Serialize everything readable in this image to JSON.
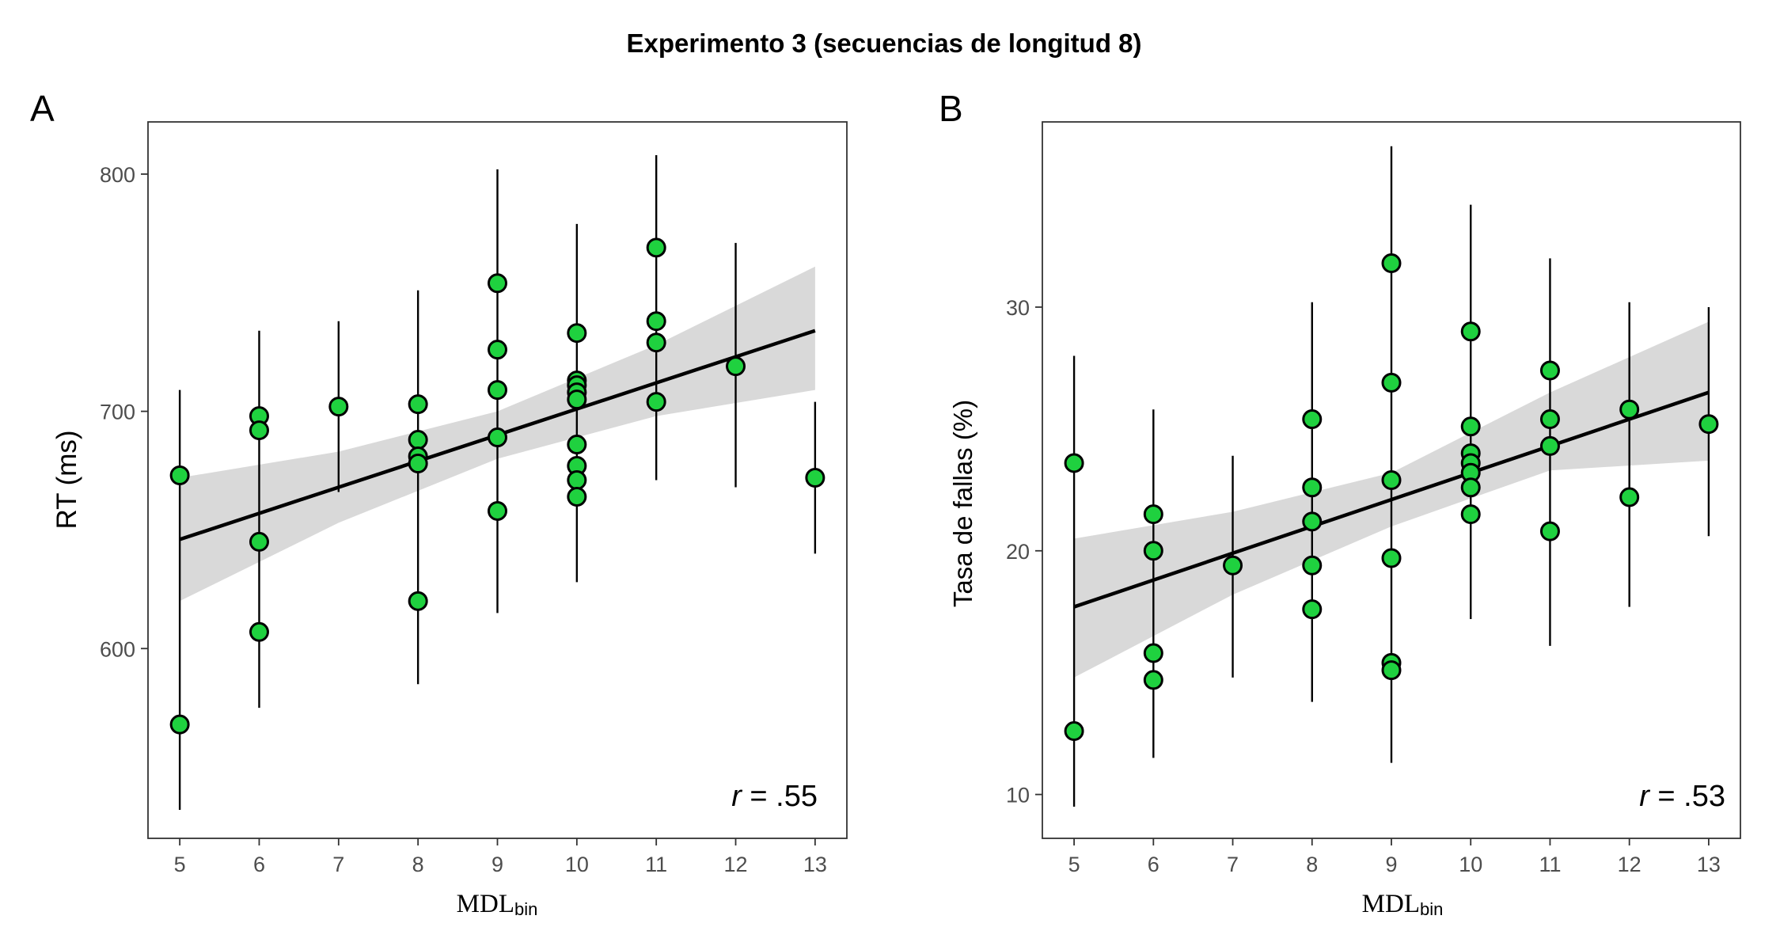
{
  "figure_title": "Experimento 3 (secuencias de longitud 8)",
  "colors": {
    "point_fill": "#1fd13f",
    "point_stroke": "#000000",
    "ribbon": "#d9d9d9",
    "line": "#000000",
    "frame": "#333333"
  },
  "chart_data": [
    {
      "type": "scatter",
      "panel_label": "A",
      "ylabel": "RT (ms)",
      "xlabel_main": "MDL",
      "xlabel_sub": "bin",
      "annotation_r": "r",
      "annotation_value": " = .55",
      "xlim": [
        4.6,
        13.4
      ],
      "ylim": [
        520,
        822
      ],
      "x_ticks": [
        5,
        6,
        7,
        8,
        9,
        10,
        11,
        12,
        13
      ],
      "y_ticks": [
        600,
        700,
        800
      ],
      "points": [
        {
          "x": 5,
          "y": 673
        },
        {
          "x": 5,
          "y": 568
        },
        {
          "x": 6,
          "y": 698
        },
        {
          "x": 6,
          "y": 692
        },
        {
          "x": 6,
          "y": 645
        },
        {
          "x": 6,
          "y": 607
        },
        {
          "x": 7,
          "y": 702
        },
        {
          "x": 8,
          "y": 703
        },
        {
          "x": 8,
          "y": 688
        },
        {
          "x": 8,
          "y": 681
        },
        {
          "x": 8,
          "y": 678
        },
        {
          "x": 8,
          "y": 620
        },
        {
          "x": 9,
          "y": 754
        },
        {
          "x": 9,
          "y": 726
        },
        {
          "x": 9,
          "y": 709
        },
        {
          "x": 9,
          "y": 689
        },
        {
          "x": 9,
          "y": 658
        },
        {
          "x": 10,
          "y": 733
        },
        {
          "x": 10,
          "y": 713
        },
        {
          "x": 10,
          "y": 711
        },
        {
          "x": 10,
          "y": 708
        },
        {
          "x": 10,
          "y": 705
        },
        {
          "x": 10,
          "y": 686
        },
        {
          "x": 10,
          "y": 677
        },
        {
          "x": 10,
          "y": 671
        },
        {
          "x": 10,
          "y": 664
        },
        {
          "x": 11,
          "y": 769
        },
        {
          "x": 11,
          "y": 738
        },
        {
          "x": 11,
          "y": 729
        },
        {
          "x": 11,
          "y": 704
        },
        {
          "x": 12,
          "y": 719
        },
        {
          "x": 13,
          "y": 672
        }
      ],
      "error_bars": [
        {
          "x": 5,
          "low": 532,
          "high": 709
        },
        {
          "x": 6,
          "low": 575,
          "high": 734
        },
        {
          "x": 7,
          "low": 666,
          "high": 738
        },
        {
          "x": 8,
          "low": 585,
          "high": 751
        },
        {
          "x": 9,
          "low": 615,
          "high": 802
        },
        {
          "x": 10,
          "low": 628,
          "high": 779
        },
        {
          "x": 11,
          "low": 671,
          "high": 808
        },
        {
          "x": 12,
          "low": 668,
          "high": 771
        },
        {
          "x": 13,
          "low": 640,
          "high": 704
        }
      ],
      "regression": {
        "x": [
          5,
          13
        ],
        "y": [
          646,
          734
        ]
      },
      "confidence_band": [
        {
          "x": 5,
          "low": 620,
          "high": 672
        },
        {
          "x": 7,
          "low": 653,
          "high": 683
        },
        {
          "x": 9,
          "low": 680,
          "high": 700
        },
        {
          "x": 11,
          "low": 698,
          "high": 728
        },
        {
          "x": 13,
          "low": 709,
          "high": 761
        }
      ],
      "grid": false
    },
    {
      "type": "scatter",
      "panel_label": "B",
      "ylabel": "Tasa de fallas (%)",
      "xlabel_main": "MDL",
      "xlabel_sub": "bin",
      "annotation_r": "r",
      "annotation_value": " = .53",
      "xlim": [
        4.6,
        13.4
      ],
      "ylim": [
        8.2,
        37.6
      ],
      "x_ticks": [
        5,
        6,
        7,
        8,
        9,
        10,
        11,
        12,
        13
      ],
      "y_ticks": [
        10,
        20,
        30
      ],
      "points": [
        {
          "x": 5,
          "y": 23.6
        },
        {
          "x": 5,
          "y": 12.6
        },
        {
          "x": 6,
          "y": 21.5
        },
        {
          "x": 6,
          "y": 20.0
        },
        {
          "x": 6,
          "y": 15.8
        },
        {
          "x": 6,
          "y": 14.7
        },
        {
          "x": 7,
          "y": 19.4
        },
        {
          "x": 8,
          "y": 25.4
        },
        {
          "x": 8,
          "y": 22.6
        },
        {
          "x": 8,
          "y": 21.2
        },
        {
          "x": 8,
          "y": 19.4
        },
        {
          "x": 8,
          "y": 17.6
        },
        {
          "x": 9,
          "y": 31.8
        },
        {
          "x": 9,
          "y": 26.9
        },
        {
          "x": 9,
          "y": 22.9
        },
        {
          "x": 9,
          "y": 19.7
        },
        {
          "x": 9,
          "y": 15.4
        },
        {
          "x": 9,
          "y": 15.1
        },
        {
          "x": 10,
          "y": 29.0
        },
        {
          "x": 10,
          "y": 25.1
        },
        {
          "x": 10,
          "y": 24.0
        },
        {
          "x": 10,
          "y": 23.6
        },
        {
          "x": 10,
          "y": 23.2
        },
        {
          "x": 10,
          "y": 22.6
        },
        {
          "x": 10,
          "y": 21.5
        },
        {
          "x": 11,
          "y": 27.4
        },
        {
          "x": 11,
          "y": 25.4
        },
        {
          "x": 11,
          "y": 24.3
        },
        {
          "x": 11,
          "y": 20.8
        },
        {
          "x": 12,
          "y": 25.8
        },
        {
          "x": 12,
          "y": 22.2
        },
        {
          "x": 13,
          "y": 25.2
        }
      ],
      "error_bars": [
        {
          "x": 5,
          "low": 9.5,
          "high": 28.0
        },
        {
          "x": 6,
          "low": 11.5,
          "high": 25.8
        },
        {
          "x": 7,
          "low": 14.8,
          "high": 23.9
        },
        {
          "x": 8,
          "low": 13.8,
          "high": 30.2
        },
        {
          "x": 9,
          "low": 11.3,
          "high": 36.6
        },
        {
          "x": 10,
          "low": 17.2,
          "high": 34.2
        },
        {
          "x": 11,
          "low": 16.1,
          "high": 32.0
        },
        {
          "x": 12,
          "low": 17.7,
          "high": 30.2
        },
        {
          "x": 13,
          "low": 20.6,
          "high": 30.0
        }
      ],
      "regression": {
        "x": [
          5,
          13
        ],
        "y": [
          17.7,
          26.5
        ]
      },
      "confidence_band": [
        {
          "x": 5,
          "low": 14.8,
          "high": 20.5
        },
        {
          "x": 7,
          "low": 18.2,
          "high": 21.6
        },
        {
          "x": 9,
          "low": 21.0,
          "high": 23.2
        },
        {
          "x": 11,
          "low": 23.3,
          "high": 26.5
        },
        {
          "x": 13,
          "low": 23.7,
          "high": 29.4
        }
      ],
      "grid": false
    }
  ]
}
